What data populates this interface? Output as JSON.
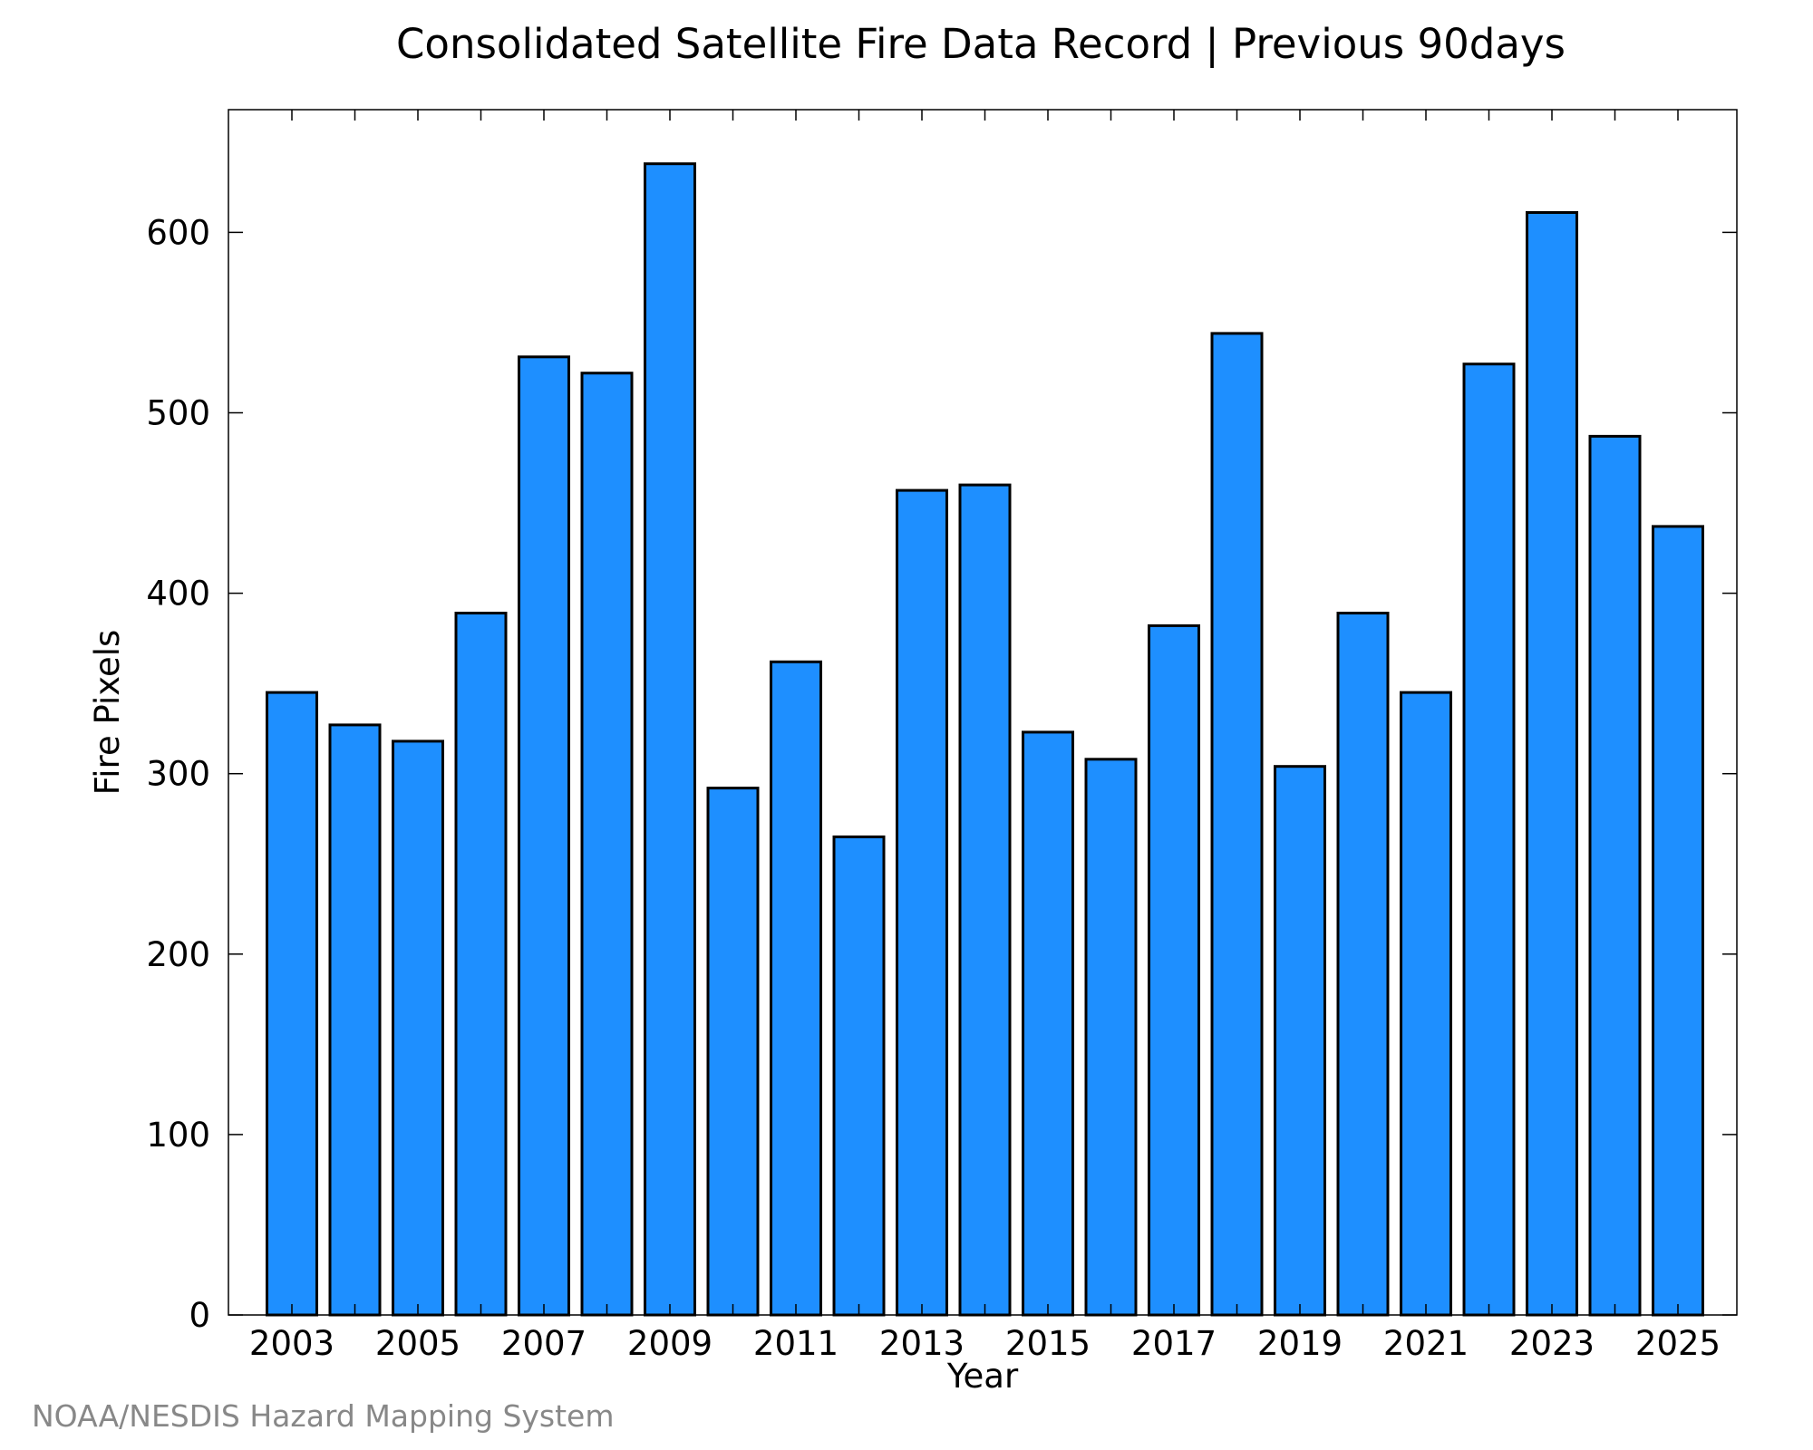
{
  "credit": "NOAA/NESDIS Hazard Mapping System",
  "colors": {
    "bar_fill": "#1E8FFF",
    "bar_edge": "#000000",
    "credit_text": "#888888"
  },
  "chart_data": {
    "type": "bar",
    "title": "Consolidated Satellite Fire Data Record | Previous 90days",
    "xlabel": "Year",
    "ylabel": "Fire Pixels",
    "categories": [
      "2003",
      "2004",
      "2005",
      "2006",
      "2007",
      "2008",
      "2009",
      "2010",
      "2011",
      "2012",
      "2013",
      "2014",
      "2015",
      "2016",
      "2017",
      "2018",
      "2019",
      "2020",
      "2021",
      "2022",
      "2023",
      "2024",
      "2025"
    ],
    "values": [
      345,
      327,
      318,
      389,
      531,
      522,
      638,
      292,
      362,
      265,
      457,
      460,
      323,
      308,
      382,
      544,
      304,
      389,
      345,
      527,
      611,
      487,
      437
    ],
    "x_tick_labels": [
      "2003",
      "2005",
      "2007",
      "2009",
      "2011",
      "2013",
      "2015",
      "2017",
      "2019",
      "2021",
      "2023",
      "2025"
    ],
    "y_ticks": [
      0,
      100,
      200,
      300,
      400,
      500,
      600
    ],
    "ylim": [
      0,
      668
    ],
    "grid": false,
    "legend": "none"
  }
}
